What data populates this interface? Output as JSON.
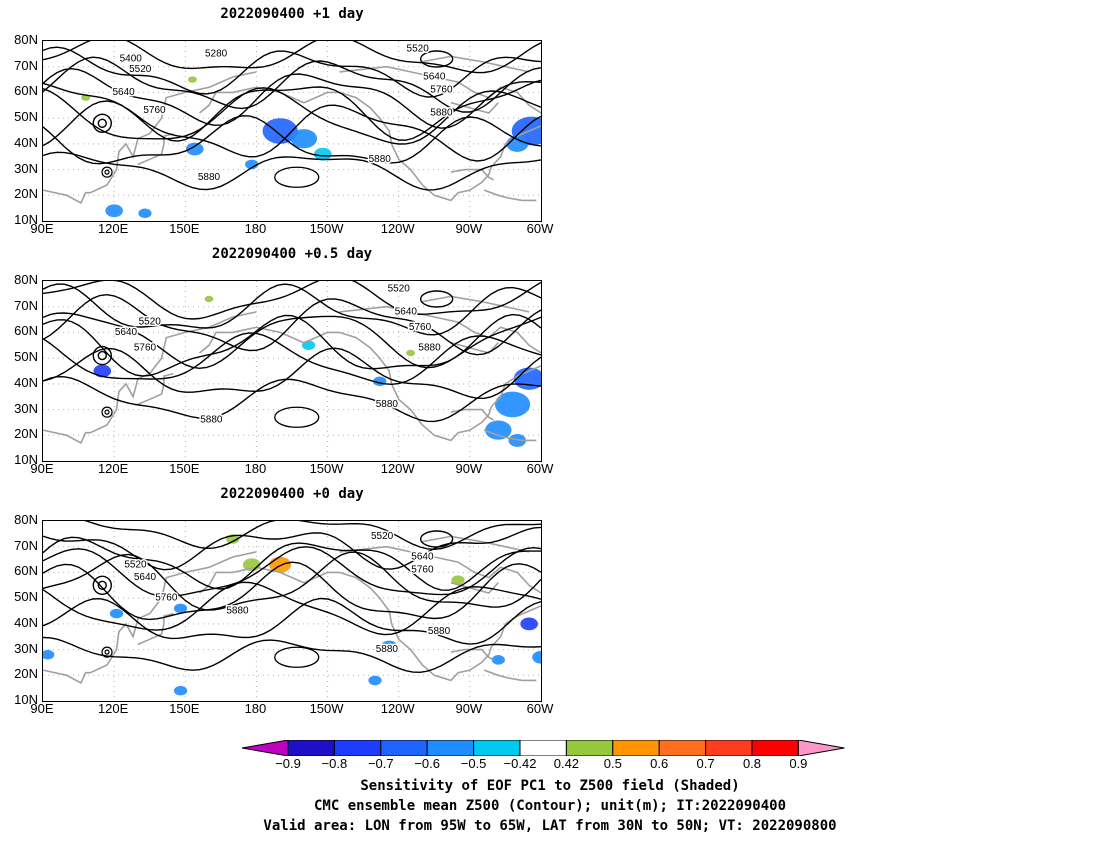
{
  "panels": [
    {
      "title": "2022090400  +1 day",
      "contour_labels": [
        {
          "text": "5400",
          "lon": 127,
          "lat": 72
        },
        {
          "text": "5280",
          "lon": 163,
          "lat": 74
        },
        {
          "text": "5520",
          "lon": 131,
          "lat": 68
        },
        {
          "text": "5520",
          "lon": 248,
          "lat": 76
        },
        {
          "text": "5640",
          "lon": 124,
          "lat": 59
        },
        {
          "text": "5640",
          "lon": 255,
          "lat": 65
        },
        {
          "text": "5760",
          "lon": 137,
          "lat": 52
        },
        {
          "text": "5760",
          "lon": 258,
          "lat": 60
        },
        {
          "text": "5880",
          "lon": 258,
          "lat": 51
        },
        {
          "text": "5880",
          "lon": 160,
          "lat": 26
        },
        {
          "text": "5880",
          "lon": 232,
          "lat": 33
        }
      ]
    },
    {
      "title": "2022090400  +0.5 day",
      "contour_labels": [
        {
          "text": "5520",
          "lon": 240,
          "lat": 76
        },
        {
          "text": "5520",
          "lon": 135,
          "lat": 63
        },
        {
          "text": "5640",
          "lon": 125,
          "lat": 59
        },
        {
          "text": "5640",
          "lon": 243,
          "lat": 67
        },
        {
          "text": "5760",
          "lon": 133,
          "lat": 53
        },
        {
          "text": "5760",
          "lon": 249,
          "lat": 61
        },
        {
          "text": "5880",
          "lon": 253,
          "lat": 53
        },
        {
          "text": "5880",
          "lon": 161,
          "lat": 25
        },
        {
          "text": "5880",
          "lon": 235,
          "lat": 31
        }
      ]
    },
    {
      "title": "2022090400  +0 day",
      "contour_labels": [
        {
          "text": "5520",
          "lon": 233,
          "lat": 73
        },
        {
          "text": "5520",
          "lon": 129,
          "lat": 62
        },
        {
          "text": "5640",
          "lon": 133,
          "lat": 57
        },
        {
          "text": "5640",
          "lon": 250,
          "lat": 65
        },
        {
          "text": "5760",
          "lon": 142,
          "lat": 49
        },
        {
          "text": "5760",
          "lon": 250,
          "lat": 60
        },
        {
          "text": "5880",
          "lon": 172,
          "lat": 44
        },
        {
          "text": "5880",
          "lon": 257,
          "lat": 36
        },
        {
          "text": "5880",
          "lon": 235,
          "lat": 29
        }
      ]
    }
  ],
  "axes": {
    "lat_labels": [
      "80N",
      "70N",
      "60N",
      "50N",
      "40N",
      "30N",
      "20N",
      "10N"
    ],
    "lon_labels": [
      "90E",
      "120E",
      "150E",
      "180",
      "150W",
      "120W",
      "90W",
      "60W"
    ],
    "lat_range": [
      10,
      80
    ],
    "lon_range": [
      90,
      300
    ]
  },
  "colorbar": {
    "labels": [
      "-0.9",
      "-0.8",
      "-0.7",
      "-0.6",
      "-0.5",
      "-0.42",
      "0.42",
      "0.5",
      "0.6",
      "0.7",
      "0.8",
      "0.9"
    ],
    "colors": [
      "#c000c0",
      "#1e0fc8",
      "#1e3cff",
      "#1e64ff",
      "#1e8cff",
      "#00c8f0",
      "#ffffff",
      "#96c83c",
      "#ff9600",
      "#ff6e1e",
      "#ff3c1e",
      "#ff0000",
      "#ff96c8"
    ]
  },
  "captions": [
    "Sensitivity of EOF PC1 to Z500 field (Shaded)",
    "CMC ensemble mean Z500 (Contour); unit(m); IT:2022090400",
    "Valid area: LON from 95W to 65W, LAT from 30N to 50N; VT: 2022090800"
  ],
  "colors": {
    "contour": "#000000",
    "coast": "#a0a0a0",
    "grid": "#b4b4b4"
  }
}
